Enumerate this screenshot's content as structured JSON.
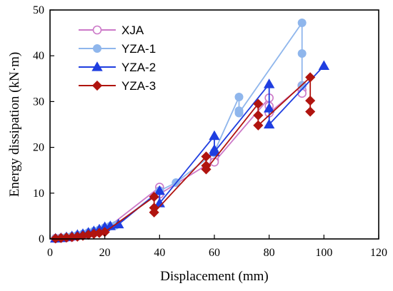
{
  "chart_data": {
    "type": "line",
    "xlabel": "Displacement (mm)",
    "ylabel": "Energy dissipation (kN·m)",
    "xlim": [
      0,
      120
    ],
    "ylim": [
      0,
      50
    ],
    "xticks": [
      0,
      20,
      40,
      60,
      80,
      100,
      120
    ],
    "yticks": [
      0,
      10,
      20,
      30,
      40,
      50
    ],
    "grid": false,
    "legend_position": "top-left",
    "series": [
      {
        "name": "XJA",
        "color": "#cc79c8",
        "marker": "open-circle",
        "x": [
          2,
          2,
          4,
          4,
          6,
          6,
          8,
          8,
          10,
          10,
          12,
          12,
          14,
          14,
          16,
          16,
          18,
          18,
          20,
          20,
          40,
          40,
          40,
          60,
          60,
          60,
          80,
          80,
          80,
          92,
          92,
          92
        ],
        "y": [
          0.1,
          0.1,
          0.2,
          0.2,
          0.3,
          0.3,
          0.5,
          0.4,
          0.7,
          0.6,
          0.9,
          0.8,
          1.2,
          1.1,
          1.5,
          1.3,
          1.8,
          1.6,
          2.2,
          2.0,
          11.3,
          10.5,
          9.8,
          17.2,
          18.0,
          16.8,
          30.8,
          29.0,
          27.5,
          33.5,
          32.5,
          31.8
        ]
      },
      {
        "name": "YZA-1",
        "color": "#8fb6ec",
        "marker": "filled-circle",
        "x": [
          2,
          4,
          6,
          8,
          10,
          12,
          14,
          16,
          18,
          20,
          22,
          24,
          40,
          46,
          60,
          60,
          69,
          69,
          69,
          92,
          92,
          92
        ],
        "y": [
          0.1,
          0.2,
          0.4,
          0.6,
          0.8,
          1.1,
          1.4,
          1.7,
          2.0,
          2.5,
          2.8,
          3.0,
          10.5,
          12.3,
          18.8,
          19.0,
          31.0,
          28.0,
          27.5,
          47.2,
          40.5,
          33.5
        ]
      },
      {
        "name": "YZA-2",
        "color": "#1f3ee0",
        "marker": "triangle",
        "x": [
          2,
          4,
          6,
          8,
          10,
          12,
          14,
          16,
          18,
          20,
          22,
          25,
          40,
          40,
          60,
          60,
          60,
          80,
          80,
          80,
          100
        ],
        "y": [
          0.1,
          0.2,
          0.4,
          0.6,
          0.9,
          1.1,
          1.4,
          1.7,
          2.1,
          2.6,
          2.8,
          3.2,
          10.5,
          7.8,
          22.5,
          19.5,
          19.0,
          33.8,
          28.5,
          25.0,
          37.8
        ]
      },
      {
        "name": "YZA-3",
        "color": "#b0140f",
        "marker": "diamond",
        "x": [
          2,
          4,
          6,
          8,
          10,
          12,
          14,
          16,
          18,
          20,
          38,
          38,
          38,
          57,
          57,
          57,
          76,
          76,
          76,
          95,
          95,
          95
        ],
        "y": [
          0.1,
          0.2,
          0.3,
          0.4,
          0.5,
          0.7,
          0.9,
          1.1,
          1.3,
          1.5,
          9.2,
          6.8,
          5.8,
          18.0,
          16.0,
          15.2,
          29.5,
          27.0,
          24.8,
          35.3,
          30.2,
          27.8
        ]
      }
    ]
  }
}
